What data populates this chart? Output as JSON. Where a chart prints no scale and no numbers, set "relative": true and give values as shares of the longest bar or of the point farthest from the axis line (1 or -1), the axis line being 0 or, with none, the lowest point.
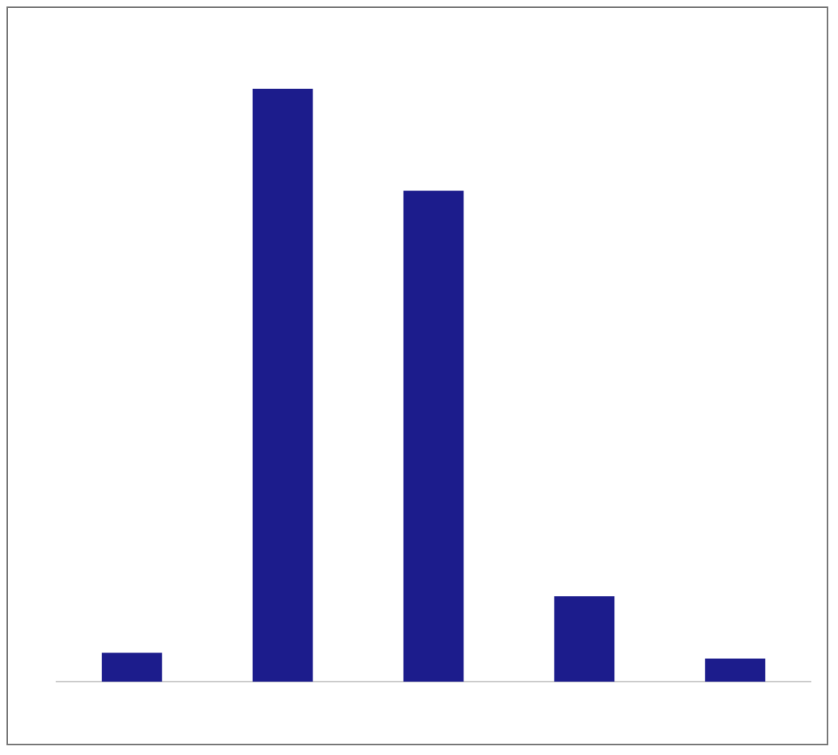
{
  "chart_data": {
    "type": "bar",
    "relative": true,
    "categories": [
      null,
      null,
      null,
      null,
      null
    ],
    "values": [
      0.049,
      1,
      0.828,
      0.144,
      0.039
    ],
    "color": "#1c1c8c"
  }
}
